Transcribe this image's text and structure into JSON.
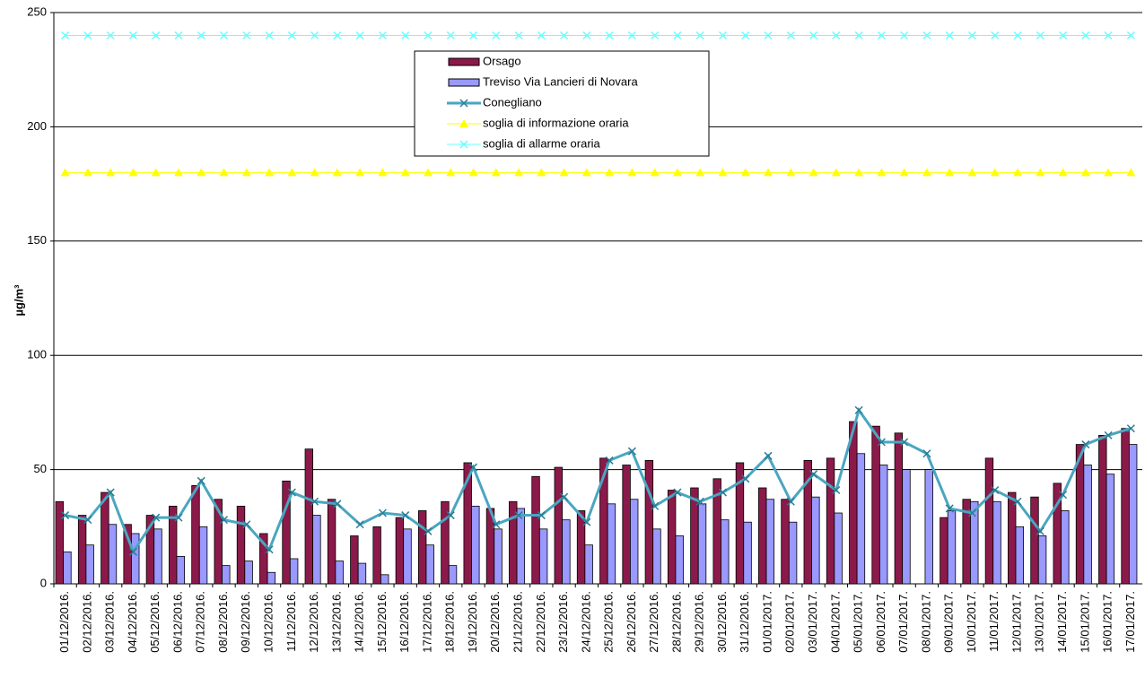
{
  "chart_data": {
    "type": "bar",
    "y_label": "µg/m³",
    "categories": [
      "01/12/2016.",
      "02/12/2016.",
      "03/12/2016.",
      "04/12/2016.",
      "05/12/2016.",
      "06/12/2016.",
      "07/12/2016.",
      "08/12/2016.",
      "09/12/2016.",
      "10/12/2016.",
      "11/12/2016.",
      "12/12/2016.",
      "13/12/2016.",
      "14/12/2016.",
      "15/12/2016.",
      "16/12/2016.",
      "17/12/2016.",
      "18/12/2016.",
      "19/12/2016.",
      "20/12/2016.",
      "21/12/2016.",
      "22/12/2016.",
      "23/12/2016.",
      "24/12/2016.",
      "25/12/2016.",
      "26/12/2016.",
      "27/12/2016.",
      "28/12/2016.",
      "29/12/2016.",
      "30/12/2016.",
      "31/12/2016.",
      "01/01/2017.",
      "02/01/2017.",
      "03/01/2017.",
      "04/01/2017.",
      "05/01/2017.",
      "06/01/2017.",
      "07/01/2017.",
      "08/01/2017.",
      "09/01/2017.",
      "10/01/2017.",
      "11/01/2017.",
      "12/01/2017.",
      "13/01/2017.",
      "14/01/2017.",
      "15/01/2017.",
      "16/01/2017.",
      "17/01/2017."
    ],
    "series": [
      {
        "name": "Orsago",
        "type": "bar",
        "color": "#8b1a4a",
        "values": [
          36,
          30,
          40,
          26,
          30,
          34,
          43,
          37,
          34,
          22,
          45,
          59,
          37,
          21,
          25,
          29,
          32,
          36,
          53,
          33,
          36,
          47,
          51,
          32,
          55,
          52,
          54,
          41,
          42,
          46,
          53,
          42,
          37,
          54,
          55,
          71,
          69,
          66,
          null,
          29,
          37,
          55,
          40,
          38,
          44,
          61,
          65,
          68
        ]
      },
      {
        "name": "Treviso Via Lancieri di Novara",
        "type": "bar",
        "color": "#9999ff",
        "values": [
          14,
          17,
          26,
          22,
          24,
          12,
          25,
          8,
          10,
          5,
          11,
          30,
          10,
          9,
          4,
          24,
          17,
          8,
          34,
          24,
          33,
          24,
          28,
          17,
          35,
          37,
          24,
          21,
          35,
          28,
          27,
          37,
          27,
          38,
          31,
          57,
          52,
          50,
          50,
          32,
          36,
          36,
          25,
          21,
          32,
          52,
          48,
          61
        ]
      },
      {
        "name": "Conegliano",
        "type": "line",
        "marker": "x",
        "color": "#4aa6c0",
        "values": [
          30,
          28,
          40,
          14,
          29,
          29,
          45,
          28,
          26,
          15,
          40,
          36,
          35,
          26,
          31,
          30,
          23,
          30,
          51,
          26,
          30,
          30,
          38,
          27,
          54,
          58,
          34,
          40,
          36,
          40,
          46,
          56,
          36,
          48,
          41,
          76,
          62,
          62,
          57,
          33,
          31,
          41,
          36,
          23,
          39,
          61,
          65,
          68
        ]
      },
      {
        "name": "soglia di informazione oraria",
        "type": "line",
        "marker": "triangle",
        "color": "#ffff00",
        "values": [
          180,
          180,
          180,
          180,
          180,
          180,
          180,
          180,
          180,
          180,
          180,
          180,
          180,
          180,
          180,
          180,
          180,
          180,
          180,
          180,
          180,
          180,
          180,
          180,
          180,
          180,
          180,
          180,
          180,
          180,
          180,
          180,
          180,
          180,
          180,
          180,
          180,
          180,
          180,
          180,
          180,
          180,
          180,
          180,
          180,
          180,
          180,
          180
        ]
      },
      {
        "name": "soglia di allarme oraria",
        "type": "line",
        "marker": "x",
        "color": "#66ffff",
        "values": [
          240,
          240,
          240,
          240,
          240,
          240,
          240,
          240,
          240,
          240,
          240,
          240,
          240,
          240,
          240,
          240,
          240,
          240,
          240,
          240,
          240,
          240,
          240,
          240,
          240,
          240,
          240,
          240,
          240,
          240,
          240,
          240,
          240,
          240,
          240,
          240,
          240,
          240,
          240,
          240,
          240,
          240,
          240,
          240,
          240,
          240,
          240,
          240
        ]
      }
    ],
    "ylim": [
      0,
      250
    ],
    "yticks": [
      0,
      50,
      100,
      150,
      200,
      250
    ],
    "grid": true
  }
}
